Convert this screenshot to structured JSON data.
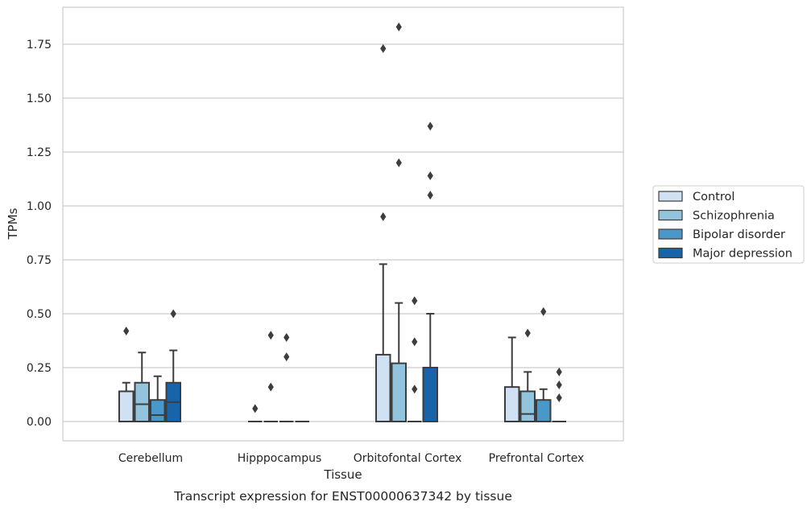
{
  "chart_data": {
    "type": "box",
    "title": "",
    "caption": "Transcript expression for ENST00000637342 by tissue",
    "xlabel": "Tissue",
    "ylabel": "TPMs",
    "ylim": [
      -0.09,
      1.92
    ],
    "yticks": [
      "0.00",
      "0.25",
      "0.50",
      "0.75",
      "1.00",
      "1.25",
      "1.50",
      "1.75"
    ],
    "grid": true,
    "legend_position": "right",
    "categories": [
      "Cerebellum",
      "Hipppocampus",
      "Orbitofontal Cortex",
      "Prefrontal Cortex"
    ],
    "series": [
      {
        "name": "Control",
        "color": "#cfe1f2",
        "boxes": [
          {
            "q1": 0.0,
            "median": 0.0,
            "q3": 0.14,
            "whislo": 0.0,
            "whishi": 0.18,
            "fliers": [
              0.42
            ]
          },
          {
            "q1": 0.0,
            "median": 0.0,
            "q3": 0.0,
            "whislo": 0.0,
            "whishi": 0.0,
            "fliers": [
              0.06
            ]
          },
          {
            "q1": 0.0,
            "median": 0.0,
            "q3": 0.31,
            "whislo": 0.0,
            "whishi": 0.73,
            "fliers": [
              0.95,
              1.73
            ]
          },
          {
            "q1": 0.0,
            "median": 0.0,
            "q3": 0.16,
            "whislo": 0.0,
            "whishi": 0.39,
            "fliers": []
          }
        ]
      },
      {
        "name": "Schizophrenia",
        "color": "#93c4de",
        "boxes": [
          {
            "q1": 0.0,
            "median": 0.08,
            "q3": 0.18,
            "whislo": 0.0,
            "whishi": 0.32,
            "fliers": []
          },
          {
            "q1": 0.0,
            "median": 0.0,
            "q3": 0.0,
            "whislo": 0.0,
            "whishi": 0.0,
            "fliers": [
              0.16,
              0.4
            ]
          },
          {
            "q1": 0.0,
            "median": 0.0,
            "q3": 0.27,
            "whislo": 0.0,
            "whishi": 0.55,
            "fliers": [
              1.2,
              1.83
            ]
          },
          {
            "q1": 0.0,
            "median": 0.035,
            "q3": 0.14,
            "whislo": 0.0,
            "whishi": 0.23,
            "fliers": [
              0.41
            ]
          }
        ]
      },
      {
        "name": "Bipolar disorder",
        "color": "#4a98c9",
        "boxes": [
          {
            "q1": 0.0,
            "median": 0.03,
            "q3": 0.1,
            "whislo": 0.0,
            "whishi": 0.21,
            "fliers": []
          },
          {
            "q1": 0.0,
            "median": 0.0,
            "q3": 0.0,
            "whislo": 0.0,
            "whishi": 0.0,
            "fliers": [
              0.3,
              0.39
            ]
          },
          {
            "q1": 0.0,
            "median": 0.0,
            "q3": 0.0,
            "whislo": 0.0,
            "whishi": 0.0,
            "fliers": [
              0.15,
              0.37,
              0.56
            ]
          },
          {
            "q1": 0.0,
            "median": 0.0,
            "q3": 0.1,
            "whislo": 0.0,
            "whishi": 0.15,
            "fliers": [
              0.51
            ]
          }
        ]
      },
      {
        "name": "Major depression",
        "color": "#1764ab",
        "boxes": [
          {
            "q1": 0.0,
            "median": 0.09,
            "q3": 0.18,
            "whislo": 0.0,
            "whishi": 0.33,
            "fliers": [
              0.5
            ]
          },
          {
            "q1": 0.0,
            "median": 0.0,
            "q3": 0.0,
            "whislo": 0.0,
            "whishi": 0.0,
            "fliers": []
          },
          {
            "q1": 0.0,
            "median": 0.0,
            "q3": 0.25,
            "whislo": 0.0,
            "whishi": 0.5,
            "fliers": [
              1.05,
              1.14,
              1.37
            ]
          },
          {
            "q1": 0.0,
            "median": 0.0,
            "q3": 0.0,
            "whislo": 0.0,
            "whishi": 0.0,
            "fliers": [
              0.11,
              0.17,
              0.23
            ]
          }
        ]
      }
    ]
  }
}
